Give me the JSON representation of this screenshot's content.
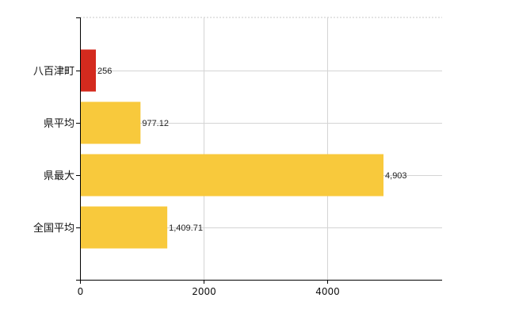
{
  "chart_data": {
    "type": "bar",
    "orientation": "horizontal",
    "categories": [
      "八百津町",
      "県平均",
      "県最大",
      "全国平均"
    ],
    "values": [
      256,
      977.12,
      4903,
      1409.71
    ],
    "value_labels": [
      "256",
      "977.12",
      "4,903",
      "1,409.71"
    ],
    "colors": [
      "#d42a1e",
      "#f8c93c",
      "#f8c93c",
      "#f8c93c"
    ],
    "x_ticks": [
      0,
      2000,
      4000
    ],
    "x_tick_labels": [
      "0",
      "2000",
      "4000"
    ],
    "xlim": [
      0,
      5850
    ],
    "grid": true,
    "legend": "none"
  }
}
